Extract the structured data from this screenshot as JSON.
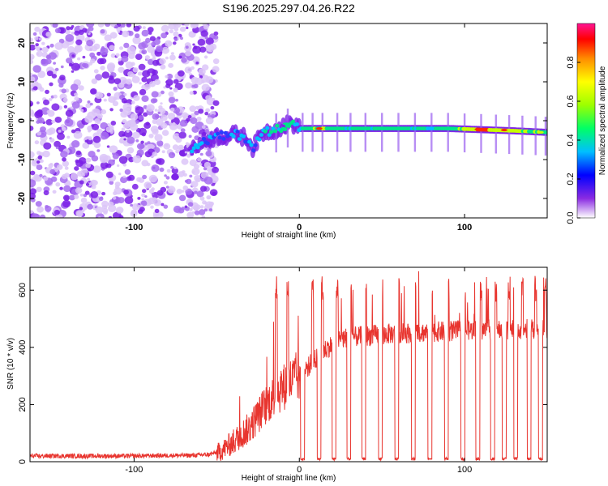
{
  "title": "S196.2025.297.04.26.R22",
  "chart_data": [
    {
      "type": "heatmap",
      "xlabel": "Height of straight line (km)",
      "ylabel": "Frequency (Hz)",
      "xlim": [
        -163,
        150
      ],
      "ylim": [
        -25,
        25
      ],
      "xticks": [
        -100,
        0,
        100
      ],
      "yticks": [
        -20,
        -10,
        0,
        10,
        20
      ],
      "xtick_labels": [
        "-100",
        "0",
        "100"
      ],
      "ytick_labels": [
        "-20",
        "-10",
        "0",
        "10",
        "20"
      ],
      "colorbar": {
        "label": "Normalized spectral amplitude",
        "range": [
          0.0,
          1.0
        ],
        "ticks": [
          0.0,
          0.2,
          0.4,
          0.6,
          0.8
        ],
        "tick_labels": [
          "0.0",
          "0.2",
          "0.4",
          "0.6",
          "0.8"
        ]
      },
      "signal_track": {
        "x": [
          -65,
          -58,
          -50,
          -44,
          -38,
          -32,
          -28,
          -22,
          -16,
          -10,
          -5,
          0,
          10,
          30,
          50,
          70,
          90,
          110,
          130,
          150
        ],
        "freq": [
          -7,
          -5.5,
          -4,
          -4,
          -3.5,
          -4.5,
          -7,
          -3,
          -2.5,
          -1.5,
          -0.5,
          -2,
          -2,
          -2,
          -2,
          -2,
          -2,
          -2.3,
          -2.6,
          -3
        ],
        "amplitude": [
          0.35,
          0.3,
          0.3,
          0.3,
          0.35,
          0.3,
          0.3,
          0.4,
          0.45,
          0.45,
          0.5,
          0.4,
          0.55,
          0.45,
          0.45,
          0.45,
          0.45,
          0.8,
          0.6,
          0.5
        ]
      },
      "noise_region": [
        -163,
        -60
      ]
    },
    {
      "type": "line",
      "xlabel": "Height of straight line (km)",
      "ylabel": "SNR (10 * v/v)",
      "xlim": [
        -163,
        150
      ],
      "ylim": [
        0,
        680
      ],
      "xticks": [
        -100,
        0,
        100
      ],
      "yticks": [
        0,
        200,
        400,
        600
      ],
      "xtick_labels": [
        "-100",
        "0",
        "100"
      ],
      "ytick_labels": [
        "0",
        "200",
        "400",
        "600"
      ],
      "color": "#e8352f",
      "series": [
        {
          "name": "SNR",
          "x": [
            -163,
            -140,
            -120,
            -100,
            -80,
            -65,
            -55,
            -48,
            -42,
            -36,
            -30,
            -25,
            -20,
            -15,
            -10,
            -5,
            0,
            5,
            10,
            15,
            20,
            25,
            30,
            40,
            50,
            60,
            70,
            80,
            90,
            100,
            110,
            120,
            130,
            140,
            150
          ],
          "values": [
            20,
            20,
            20,
            20,
            22,
            22,
            25,
            35,
            60,
            90,
            120,
            160,
            200,
            230,
            260,
            280,
            300,
            330,
            360,
            390,
            410,
            430,
            435,
            440,
            445,
            450,
            450,
            455,
            455,
            460,
            460,
            460,
            465,
            465,
            465
          ]
        }
      ],
      "dropouts_x": [
        2,
        12,
        21,
        30,
        39,
        49,
        59,
        69,
        79,
        89,
        99,
        108,
        117,
        124,
        131,
        139,
        146
      ],
      "spikes_x": [
        -14,
        -7,
        2,
        8,
        14,
        23,
        31,
        40,
        50,
        60,
        70,
        80,
        90,
        100,
        110,
        119,
        127,
        135,
        143,
        149
      ]
    }
  ]
}
